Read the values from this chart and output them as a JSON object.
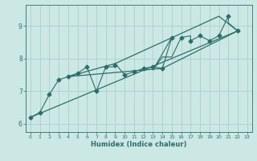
{
  "title": "",
  "xlabel": "Humidex (Indice chaleur)",
  "bg_color": "#cce8e5",
  "grid_color": "#aacfcc",
  "line_color": "#2d6e6a",
  "xlim": [
    -0.5,
    23.5
  ],
  "ylim": [
    5.75,
    9.65
  ],
  "xticks": [
    0,
    1,
    2,
    3,
    4,
    5,
    6,
    7,
    8,
    9,
    10,
    11,
    12,
    13,
    14,
    15,
    16,
    17,
    18,
    19,
    20,
    21,
    22,
    23
  ],
  "yticks": [
    6,
    7,
    8,
    9
  ],
  "zigzag_x": [
    0,
    1,
    2,
    3,
    4,
    5,
    6,
    7,
    8,
    9,
    9,
    10,
    11,
    12,
    13,
    14,
    15,
    13,
    14,
    15,
    16,
    17,
    17,
    18,
    19,
    20,
    21,
    21,
    22
  ],
  "zigzag_y": [
    6.2,
    6.35,
    6.9,
    7.35,
    7.45,
    7.55,
    7.75,
    7.0,
    7.75,
    7.75,
    7.85,
    7.5,
    7.6,
    7.7,
    7.75,
    7.7,
    8.65,
    7.65,
    8.05,
    8.05,
    8.65,
    8.7,
    8.55,
    8.7,
    8.55,
    8.7,
    9.3,
    9.1,
    8.85
  ],
  "markers_x": [
    0,
    1,
    2,
    3,
    4,
    5,
    6,
    7,
    8,
    9,
    10,
    11,
    12,
    13,
    14,
    15,
    16,
    17,
    18,
    19,
    20,
    21,
    22
  ],
  "markers_y": [
    6.2,
    6.35,
    6.9,
    7.35,
    7.45,
    7.55,
    7.75,
    7.0,
    7.75,
    7.8,
    7.5,
    7.6,
    7.7,
    7.75,
    7.7,
    8.65,
    8.65,
    8.55,
    8.7,
    8.55,
    8.7,
    9.3,
    8.85
  ],
  "trend_x": [
    0,
    22
  ],
  "trend_y": [
    6.2,
    8.85
  ],
  "polygon_x": [
    4,
    9,
    20,
    22,
    22,
    14,
    4
  ],
  "polygon_y": [
    7.45,
    7.85,
    9.3,
    8.85,
    8.85,
    7.7,
    7.45
  ]
}
